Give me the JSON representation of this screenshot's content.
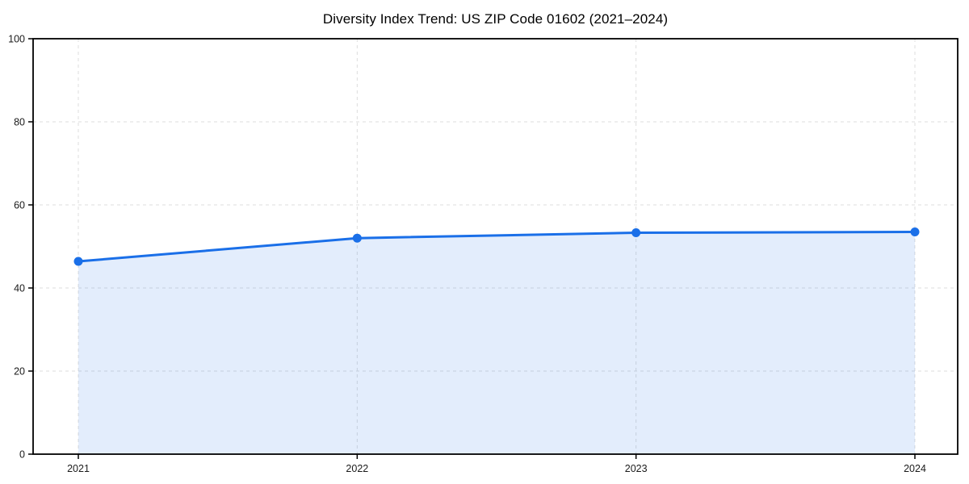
{
  "chart_data": {
    "type": "area",
    "title": "Diversity Index Trend: US ZIP Code 01602 (2021–2024)",
    "x": [
      "2021",
      "2022",
      "2023",
      "2024"
    ],
    "values": [
      46.4,
      52.0,
      53.3,
      53.5
    ],
    "xlabel": "",
    "ylabel": "",
    "ylim": [
      0,
      100
    ],
    "yticks": [
      0,
      20,
      40,
      60,
      80,
      100
    ],
    "grid": true,
    "grid_style": "dashed",
    "legend": "none",
    "markers": true,
    "colors": {
      "line": "#1a6fe8",
      "marker": "#1a6fe8",
      "fill": "#1a6fe8",
      "fill_opacity": 0.12,
      "grid": "#dddddd",
      "spine": "#000000",
      "tick_label": "#1a1a1a",
      "title": "#000000",
      "background": "#ffffff"
    }
  }
}
